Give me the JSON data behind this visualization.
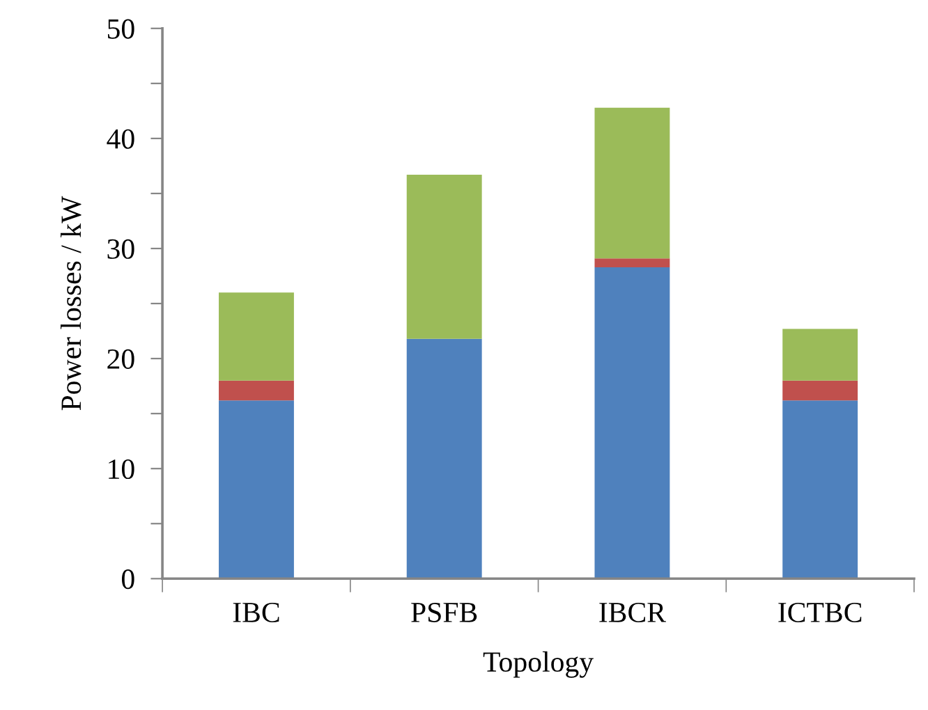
{
  "chart_data": {
    "type": "bar",
    "stacked": true,
    "xlabel": "Topology",
    "ylabel": "Power losses / kW",
    "categories": [
      "IBC",
      "PSFB",
      "IBCR",
      "ICTBC"
    ],
    "series": [
      {
        "color": "#4f81bd",
        "values": [
          16.2,
          21.8,
          28.3,
          16.2
        ]
      },
      {
        "color": "#c0504d",
        "values": [
          1.8,
          0,
          0.8,
          1.8
        ]
      },
      {
        "color": "#9bbb59",
        "values": [
          8.0,
          14.9,
          13.7,
          4.7
        ]
      }
    ],
    "ylim": [
      0,
      50
    ],
    "yticks": [
      0,
      {
        "value": 5,
        "label": null
      },
      10,
      {
        "value": 15,
        "label": null
      },
      20,
      {
        "value": 25,
        "label": null
      },
      30,
      {
        "value": 35,
        "label": null
      },
      40,
      {
        "value": 45,
        "label": null
      },
      50
    ]
  }
}
